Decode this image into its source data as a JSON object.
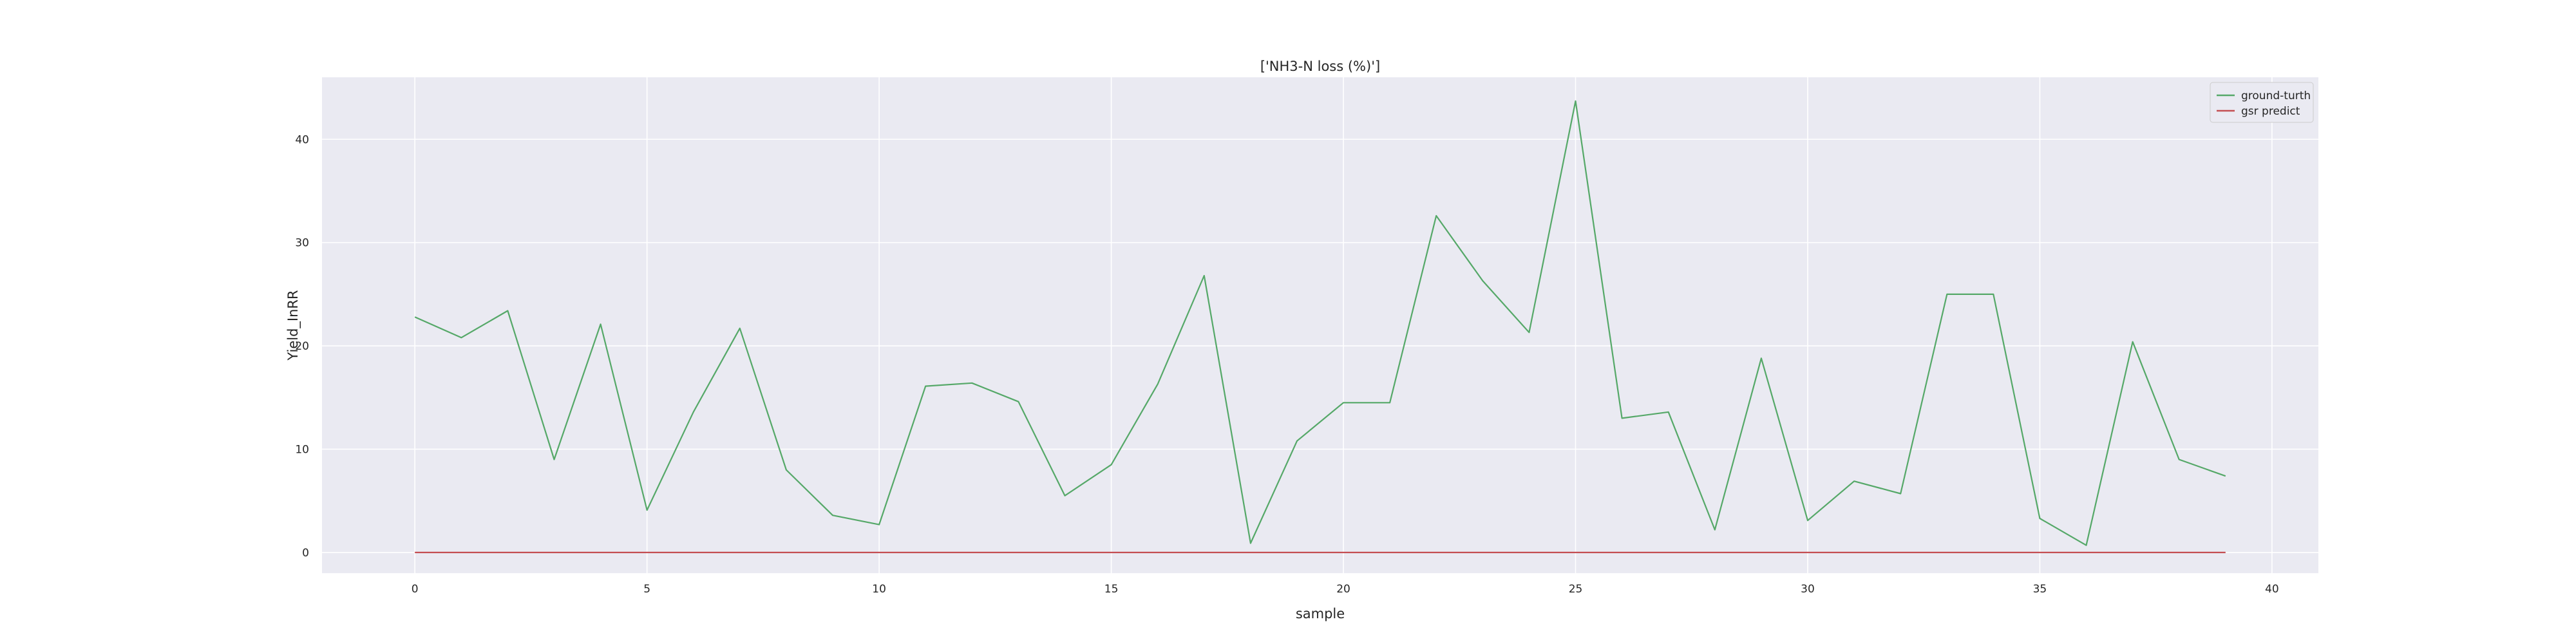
{
  "chart_data": {
    "type": "line",
    "title": "['NH3-N loss (%)']",
    "xlabel": "sample",
    "ylabel": "Yield_InRR",
    "xlim": [
      -2,
      41
    ],
    "ylim": [
      -2,
      46
    ],
    "x_ticks": [
      0,
      5,
      10,
      15,
      20,
      25,
      30,
      35,
      40
    ],
    "y_ticks": [
      0,
      10,
      20,
      30,
      40
    ],
    "grid": true,
    "legend_position": "top-right",
    "series": [
      {
        "name": "ground-turth",
        "color": "#55a868",
        "x": [
          0,
          1,
          2,
          3,
          4,
          5,
          6,
          7,
          8,
          9,
          10,
          11,
          12,
          13,
          14,
          15,
          16,
          17,
          18,
          19,
          20,
          21,
          22,
          23,
          24,
          25,
          26,
          27,
          28,
          29,
          30,
          31,
          32,
          33,
          34,
          35,
          36,
          37,
          38,
          39
        ],
        "values": [
          22.8,
          20.8,
          23.4,
          9.0,
          22.1,
          4.1,
          13.6,
          21.7,
          8.0,
          3.6,
          2.7,
          16.1,
          16.4,
          14.6,
          5.5,
          8.5,
          16.3,
          26.8,
          0.9,
          10.8,
          14.5,
          14.5,
          32.6,
          26.3,
          21.3,
          43.7,
          13.0,
          13.6,
          2.2,
          18.8,
          3.1,
          6.9,
          5.7,
          25.0,
          25.0,
          3.3,
          0.7,
          20.4,
          9.0,
          7.4
        ]
      },
      {
        "name": "gsr predict",
        "color": "#c44e52",
        "x": [
          0,
          1,
          2,
          3,
          4,
          5,
          6,
          7,
          8,
          9,
          10,
          11,
          12,
          13,
          14,
          15,
          16,
          17,
          18,
          19,
          20,
          21,
          22,
          23,
          24,
          25,
          26,
          27,
          28,
          29,
          30,
          31,
          32,
          33,
          34,
          35,
          36,
          37,
          38,
          39
        ],
        "values": [
          0,
          0,
          0,
          0,
          0,
          0,
          0,
          0,
          0,
          0,
          0,
          0,
          0,
          0,
          0,
          0,
          0,
          0,
          0,
          0,
          0,
          0,
          0,
          0,
          0,
          0,
          0,
          0,
          0,
          0,
          0,
          0,
          0,
          0,
          0,
          0,
          0,
          0,
          0,
          0
        ]
      }
    ],
    "plot_background": "#eaeaf2",
    "grid_color": "#ffffff"
  }
}
